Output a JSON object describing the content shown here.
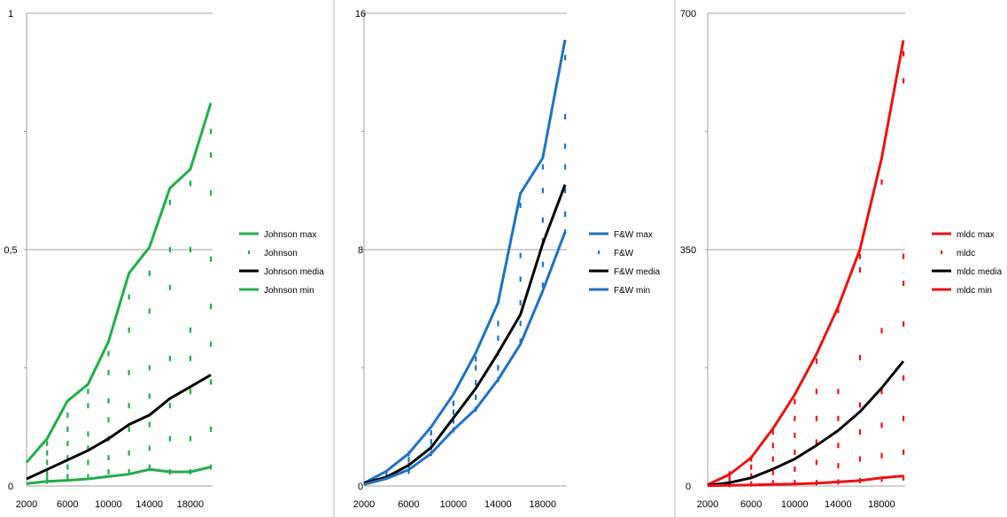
{
  "chart_data": [
    {
      "type": "line",
      "x": [
        2000,
        4000,
        6000,
        8000,
        10000,
        12000,
        14000,
        16000,
        18000,
        20000
      ],
      "x_ticks": [
        "2000",
        "6000",
        "10000",
        "14000",
        "18000"
      ],
      "ylim": [
        0,
        1
      ],
      "y_ticks": [
        "0",
        "0,5",
        "1"
      ],
      "color": "#1fae4a",
      "series": [
        {
          "name": "Johnson max",
          "style": "line",
          "values": [
            0.05,
            0.1,
            0.18,
            0.215,
            0.305,
            0.45,
            0.505,
            0.63,
            0.67,
            0.81
          ]
        },
        {
          "name": "Johnson",
          "style": "points",
          "points": [
            [
              4000,
              [
                0.01,
                0.02,
                0.03,
                0.05,
                0.07,
                0.09
              ]
            ],
            [
              6000,
              [
                0.02,
                0.04,
                0.06,
                0.09,
                0.12,
                0.15
              ]
            ],
            [
              8000,
              [
                0.02,
                0.05,
                0.08,
                0.11,
                0.17,
                0.2
              ]
            ],
            [
              10000,
              [
                0.03,
                0.06,
                0.1,
                0.14,
                0.18,
                0.24,
                0.28
              ]
            ],
            [
              12000,
              [
                0.03,
                0.07,
                0.12,
                0.17,
                0.24,
                0.33,
                0.4
              ]
            ],
            [
              14000,
              [
                0.04,
                0.08,
                0.13,
                0.19,
                0.25,
                0.37,
                0.45
              ]
            ],
            [
              16000,
              [
                0.03,
                0.1,
                0.17,
                0.27,
                0.42,
                0.5,
                0.6
              ]
            ],
            [
              18000,
              [
                0.03,
                0.1,
                0.2,
                0.27,
                0.33,
                0.5,
                0.64
              ]
            ],
            [
              20000,
              [
                0.04,
                0.12,
                0.22,
                0.3,
                0.38,
                0.48,
                0.62,
                0.7,
                0.75
              ]
            ]
          ]
        },
        {
          "name": "Johnson media",
          "style": "line",
          "color": "#000000",
          "values": [
            0.015,
            0.035,
            0.055,
            0.075,
            0.1,
            0.13,
            0.15,
            0.185,
            0.21,
            0.235
          ]
        },
        {
          "name": "Johnson min",
          "style": "line",
          "values": [
            0.005,
            0.01,
            0.012,
            0.015,
            0.02,
            0.025,
            0.035,
            0.03,
            0.03,
            0.04
          ]
        }
      ]
    },
    {
      "type": "line",
      "x": [
        2000,
        4000,
        6000,
        8000,
        10000,
        12000,
        14000,
        16000,
        18000,
        20000
      ],
      "x_ticks": [
        "2000",
        "6000",
        "10000",
        "14000",
        "18000"
      ],
      "ylim": [
        0,
        16
      ],
      "y_ticks": [
        "0",
        "8",
        "16"
      ],
      "color": "#1f72c2",
      "series": [
        {
          "name": "F&W max",
          "style": "line",
          "values": [
            0.1,
            0.5,
            1.1,
            2.0,
            3.1,
            4.5,
            6.2,
            9.9,
            11.1,
            15.1
          ]
        },
        {
          "name": "F&W",
          "style": "points",
          "points": [
            [
              4000,
              [
                0.3,
                0.4
              ]
            ],
            [
              6000,
              [
                0.5,
                0.7,
                0.9,
                1.1
              ]
            ],
            [
              8000,
              [
                1.1,
                1.3,
                1.5,
                1.8
              ]
            ],
            [
              10000,
              [
                1.9,
                2.2,
                2.5,
                2.8
              ]
            ],
            [
              12000,
              [
                2.6,
                3.0,
                3.5,
                4.0,
                4.3
              ]
            ],
            [
              14000,
              [
                3.6,
                4.0,
                4.5,
                5.0,
                5.5
              ]
            ],
            [
              16000,
              [
                4.9,
                5.5,
                6.2,
                7.0,
                7.8,
                9.5
              ]
            ],
            [
              18000,
              [
                6.8,
                7.5,
                8.3,
                9.0,
                10.0,
                10.8
              ]
            ],
            [
              20000,
              [
                8.6,
                9.2,
                10.0,
                10.8,
                11.5,
                12.5,
                14.5
              ]
            ]
          ]
        },
        {
          "name": "F&W media",
          "style": "line",
          "color": "#000000",
          "values": [
            0.1,
            0.3,
            0.7,
            1.3,
            2.3,
            3.3,
            4.5,
            5.8,
            8.2,
            10.2
          ]
        },
        {
          "name": "F&W min",
          "style": "line",
          "values": [
            0.05,
            0.25,
            0.55,
            1.1,
            1.9,
            2.6,
            3.6,
            4.8,
            6.6,
            8.6
          ]
        }
      ]
    },
    {
      "type": "line",
      "x": [
        2000,
        4000,
        6000,
        8000,
        10000,
        12000,
        14000,
        16000,
        18000,
        20000
      ],
      "x_ticks": [
        "2000",
        "6000",
        "10000",
        "14000",
        "18000"
      ],
      "ylim": [
        0,
        700
      ],
      "y_ticks": [
        "0",
        "350",
        "700"
      ],
      "color": "#ee1111",
      "series": [
        {
          "name": "mldc max",
          "style": "line",
          "values": [
            2,
            17,
            42,
            85,
            135,
            195,
            265,
            350,
            485,
            660
          ]
        },
        {
          "name": "mldc",
          "style": "points",
          "points": [
            [
              4000,
              [
                2,
                8,
                14,
                18
              ]
            ],
            [
              6000,
              [
                3,
                15,
                28,
                40
              ]
            ],
            [
              8000,
              [
                5,
                20,
                40,
                60,
                80
              ]
            ],
            [
              10000,
              [
                5,
                25,
                50,
                75,
                100,
                125
              ]
            ],
            [
              12000,
              [
                5,
                35,
                65,
                100,
                140,
                185
              ]
            ],
            [
              14000,
              [
                6,
                30,
                60,
                100,
                140,
                260
              ]
            ],
            [
              16000,
              [
                8,
                40,
                80,
                120,
                190,
                320,
                340
              ]
            ],
            [
              18000,
              [
                10,
                45,
                90,
                140,
                230,
                450
              ]
            ],
            [
              20000,
              [
                12,
                50,
                100,
                160,
                240,
                300,
                340,
                600,
                640
              ]
            ]
          ]
        },
        {
          "name": "mldc media",
          "style": "line",
          "color": "#000000",
          "values": [
            1,
            5,
            12,
            25,
            40,
            60,
            82,
            110,
            145,
            185
          ]
        },
        {
          "name": "mldc min",
          "style": "line",
          "values": [
            0.5,
            1,
            1.5,
            2.5,
            3,
            4,
            6,
            8,
            12,
            15
          ]
        }
      ]
    }
  ]
}
